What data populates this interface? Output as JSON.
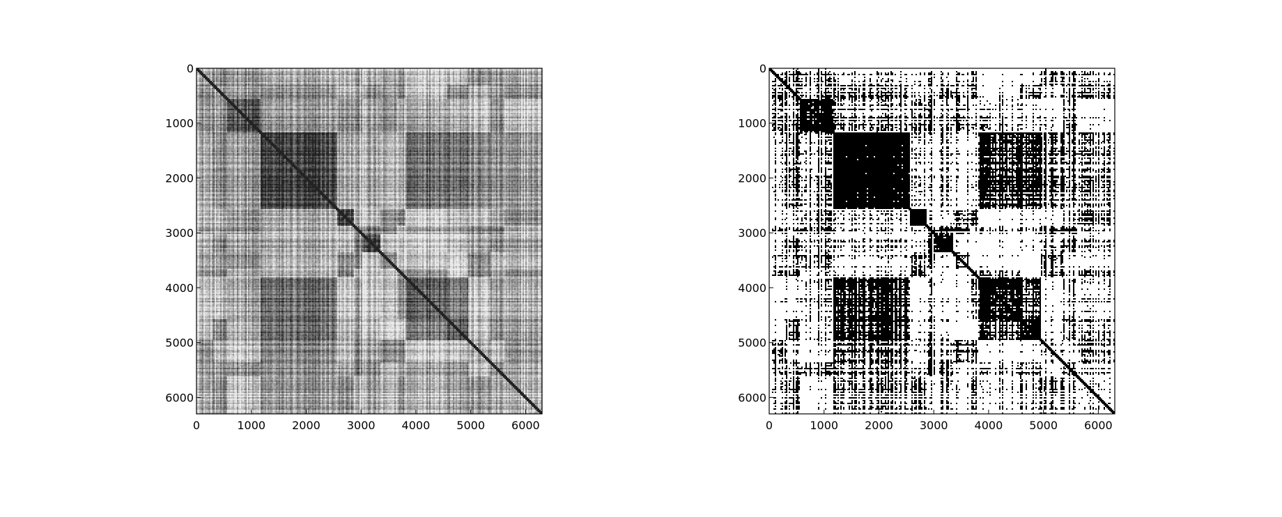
{
  "chart_data": [
    {
      "type": "heatmap",
      "colormap": "gray",
      "variant": "grayscale",
      "matrix_size": 6300,
      "xlim": [
        0,
        6300
      ],
      "ylim": [
        6300,
        0
      ],
      "xticks": [
        0,
        1000,
        2000,
        3000,
        4000,
        5000,
        6000
      ],
      "yticks": [
        0,
        1000,
        2000,
        3000,
        4000,
        5000,
        6000
      ],
      "xtick_labels": [
        "0",
        "1000",
        "2000",
        "3000",
        "4000",
        "5000",
        "6000"
      ],
      "ytick_labels": [
        "0",
        "1000",
        "2000",
        "3000",
        "4000",
        "5000",
        "6000"
      ],
      "segments": [
        0,
        300,
        550,
        1150,
        2550,
        2850,
        3000,
        3350,
        3650,
        3800,
        4550,
        4950,
        5350,
        5600,
        6300
      ],
      "dark_blocks": [
        [
          1150,
          2550,
          1150,
          2550
        ],
        [
          2550,
          2850,
          2550,
          2850
        ],
        [
          3000,
          3350,
          3000,
          3350
        ],
        [
          4550,
          4950,
          4550,
          4950
        ],
        [
          3800,
          4550,
          3800,
          4550
        ],
        [
          550,
          1150,
          550,
          1150
        ]
      ],
      "diagonal": true
    },
    {
      "type": "heatmap",
      "colormap": "binary",
      "variant": "thresholded",
      "matrix_size": 6300,
      "xlim": [
        0,
        6300
      ],
      "ylim": [
        6300,
        0
      ],
      "xticks": [
        0,
        1000,
        2000,
        3000,
        4000,
        5000,
        6000
      ],
      "yticks": [
        0,
        1000,
        2000,
        3000,
        4000,
        5000,
        6000
      ],
      "xtick_labels": [
        "0",
        "1000",
        "2000",
        "3000",
        "4000",
        "5000",
        "6000"
      ],
      "ytick_labels": [
        "0",
        "1000",
        "2000",
        "3000",
        "4000",
        "5000",
        "6000"
      ],
      "segments": [
        0,
        300,
        550,
        1150,
        2550,
        2850,
        3000,
        3350,
        3650,
        3800,
        4550,
        4950,
        5350,
        5600,
        6300
      ],
      "dark_blocks": [
        [
          1150,
          2550,
          1150,
          2550
        ],
        [
          2550,
          2850,
          2550,
          2850
        ],
        [
          3000,
          3350,
          3000,
          3350
        ],
        [
          4550,
          4950,
          4550,
          4950
        ],
        [
          3800,
          4550,
          3800,
          4550
        ],
        [
          550,
          1150,
          550,
          1150
        ]
      ],
      "diagonal": true
    }
  ]
}
